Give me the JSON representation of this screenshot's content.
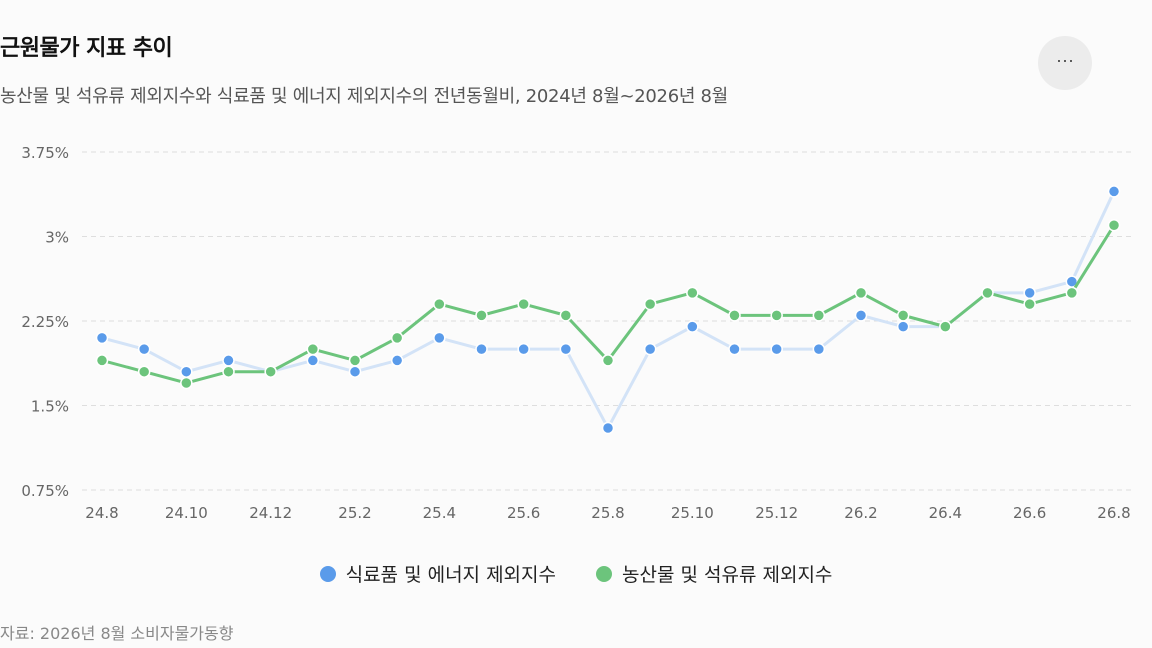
{
  "header": {
    "title": "근원물가 지표 추이",
    "subtitle": "농산물 및 석유류 제외지수와 식료품 및 에너지 제외지수의 전년동월비, 2024년 8월~2026년 8월",
    "more_icon": "more-horizontal-icon",
    "more_label": "···"
  },
  "chart_data": {
    "type": "line",
    "categories": [
      "24.8",
      "24.9",
      "24.10",
      "24.11",
      "24.12",
      "25.1",
      "25.2",
      "25.3",
      "25.4",
      "25.5",
      "25.6",
      "25.7",
      "25.8",
      "25.9",
      "25.10",
      "25.11",
      "25.12",
      "26.1",
      "26.2",
      "26.3",
      "26.4",
      "26.5",
      "26.6",
      "26.7",
      "26.8"
    ],
    "x_tick_labels": [
      "24.8",
      "24.10",
      "24.12",
      "25.2",
      "25.4",
      "25.6",
      "25.8",
      "25.10",
      "25.12",
      "26.2",
      "26.4",
      "26.6",
      "26.8"
    ],
    "y_tick_labels": [
      "0.75%",
      "1.5%",
      "2.25%",
      "3%",
      "3.75%"
    ],
    "y_ticks": [
      0.75,
      1.5,
      2.25,
      3,
      3.75
    ],
    "ylim": [
      0.75,
      3.75
    ],
    "grid": true,
    "legend_position": "bottom",
    "series": [
      {
        "name": "식료품 및 에너지 제외지수",
        "line_color": "#d3e3f7",
        "dot_color": "#5a9bea",
        "values": [
          2.1,
          2.0,
          1.8,
          1.9,
          1.8,
          1.9,
          1.8,
          1.9,
          2.1,
          2.0,
          2.0,
          2.0,
          1.3,
          2.0,
          2.2,
          2.0,
          2.0,
          2.0,
          2.3,
          2.2,
          2.2,
          2.5,
          2.5,
          2.6,
          3.4
        ]
      },
      {
        "name": "농산물 및 석유류 제외지수",
        "line_color": "#6cc47c",
        "dot_color": "#6cc47c",
        "values": [
          1.9,
          1.8,
          1.7,
          1.8,
          1.8,
          2.0,
          1.9,
          2.1,
          2.4,
          2.3,
          2.4,
          2.3,
          1.9,
          2.4,
          2.5,
          2.3,
          2.3,
          2.3,
          2.5,
          2.3,
          2.2,
          2.5,
          2.4,
          2.5,
          3.1
        ]
      }
    ]
  },
  "footer": {
    "source": "자료: 2026년 8월 소비자물가동향"
  }
}
